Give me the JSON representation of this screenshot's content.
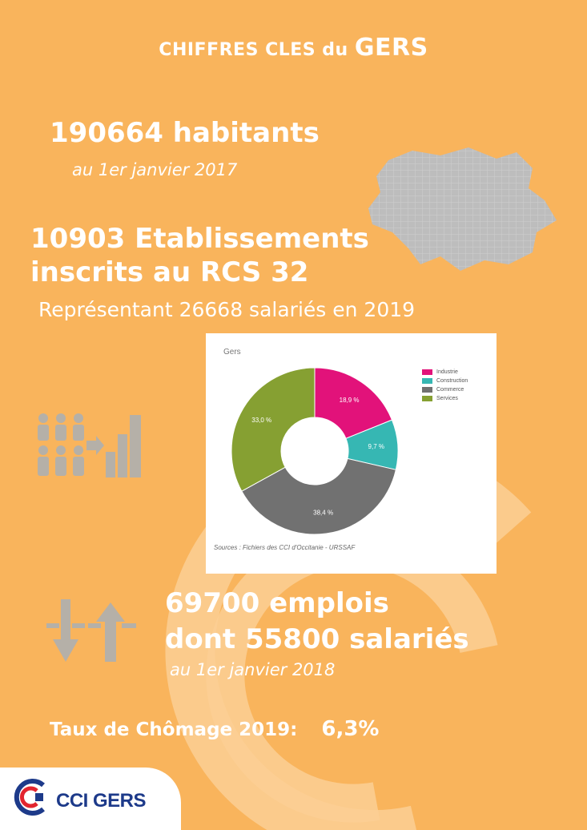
{
  "header": {
    "title_prefix": "CHIFFRES CLES du",
    "title_emphasis": "GERS"
  },
  "population": {
    "value_text": "190664 habitants",
    "date_text": "au 1er janvier 2017"
  },
  "establishments": {
    "line1": "10903 Etablissements",
    "line2": "inscrits au RCS 32",
    "subtitle": "Représentant 26668 salariés en 2019"
  },
  "employment": {
    "line1": "69700 emplois",
    "line2": "dont 55800 salariés",
    "date_text": "au 1er janvier 2018"
  },
  "unemployment": {
    "label": "Taux de Chômage 2019:",
    "value": "6,3%"
  },
  "logo": {
    "text": "CCI GERS"
  },
  "colors": {
    "background": "#f9b45c",
    "industrie": "#e2127a",
    "construction": "#36b7b3",
    "commerce": "#717171",
    "services": "#86a032"
  },
  "icons": [
    "gers-map-icon",
    "people-growth-icon",
    "arrows-up-down-icon",
    "cci-logo-icon"
  ],
  "chart_data": {
    "type": "pie",
    "title": "Gers",
    "source": "Sources : Fichiers des CCI d'Occitanie - URSSAF",
    "legend_position": "top-right",
    "categories": [
      "Industrie",
      "Construction",
      "Commerce",
      "Services"
    ],
    "values": [
      18.9,
      9.7,
      38.4,
      33.0
    ],
    "value_labels": [
      "18,9 %",
      "9,7 %",
      "38,4 %",
      "33,0 %"
    ],
    "colors": [
      "#e2127a",
      "#36b7b3",
      "#717171",
      "#86a032"
    ]
  }
}
